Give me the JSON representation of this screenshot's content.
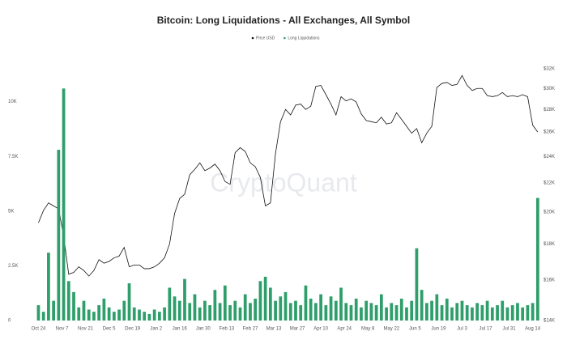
{
  "chart_data": {
    "type": "bar-line",
    "title": "Bitcoin: Long Liquidations - All Exchanges, All Symbol",
    "watermark": "CryptoQuant",
    "legend_position": "top",
    "x": [
      0,
      3,
      6,
      9,
      12,
      15,
      18,
      21,
      24,
      27,
      30,
      33,
      36,
      39,
      42,
      45,
      48,
      51,
      54,
      57,
      60,
      63,
      66,
      69,
      72,
      75,
      78,
      81,
      84,
      87,
      90,
      93,
      96,
      99,
      102,
      105,
      108,
      111,
      114,
      117,
      120,
      123,
      126,
      129,
      132,
      135,
      138,
      141,
      144,
      147,
      150,
      153,
      156,
      159,
      162,
      165,
      168,
      171,
      174,
      177,
      180,
      183,
      186,
      189,
      192,
      195,
      198,
      201,
      204,
      207,
      210,
      213,
      216,
      219,
      222,
      225,
      228,
      231,
      234,
      237,
      240,
      243,
      246,
      249,
      252,
      255,
      258,
      261,
      264,
      267,
      270,
      273,
      276,
      279,
      282,
      285,
      288,
      291,
      294,
      297
    ],
    "xlim": [
      -6,
      299
    ],
    "xticks": [
      {
        "value": 0,
        "label": "Oct 24"
      },
      {
        "value": 14,
        "label": "Nov 7"
      },
      {
        "value": 28,
        "label": "Nov 21"
      },
      {
        "value": 42,
        "label": "Dec 5"
      },
      {
        "value": 56,
        "label": "Dec 19"
      },
      {
        "value": 70,
        "label": "Jan 2"
      },
      {
        "value": 84,
        "label": "Jan 16"
      },
      {
        "value": 98,
        "label": "Jan 30"
      },
      {
        "value": 112,
        "label": "Feb 13"
      },
      {
        "value": 126,
        "label": "Feb 27"
      },
      {
        "value": 140,
        "label": "Mar 13"
      },
      {
        "value": 154,
        "label": "Mar 27"
      },
      {
        "value": 168,
        "label": "Apr 10"
      },
      {
        "value": 182,
        "label": "Apr 24"
      },
      {
        "value": 196,
        "label": "May 8"
      },
      {
        "value": 210,
        "label": "May 22"
      },
      {
        "value": 224,
        "label": "Jun 5"
      },
      {
        "value": 238,
        "label": "Jun 19"
      },
      {
        "value": 252,
        "label": "Jul 3"
      },
      {
        "value": 266,
        "label": "Jul 17"
      },
      {
        "value": 280,
        "label": "Jul 31"
      },
      {
        "value": 294,
        "label": "Aug 14"
      }
    ],
    "ylim": [
      0,
      11500
    ],
    "yticks": [
      0,
      {
        "value": 2500,
        "label": "2.5K"
      },
      {
        "value": 5000,
        "label": "5K"
      },
      {
        "value": 7500,
        "label": "7.5K"
      },
      {
        "value": 10000,
        "label": "10K"
      }
    ],
    "y2lim": [
      14000,
      32000
    ],
    "y2scale": "log",
    "y2ticks": [
      {
        "value": 14000,
        "label": "$14K"
      },
      {
        "value": 16000,
        "label": "$16K"
      },
      {
        "value": 18000,
        "label": "$18K"
      },
      {
        "value": 20000,
        "label": "$20K"
      },
      {
        "value": 22000,
        "label": "$22K"
      },
      {
        "value": 24000,
        "label": "$24K"
      },
      {
        "value": 26000,
        "label": "$26K"
      },
      {
        "value": 28000,
        "label": "$28K"
      },
      {
        "value": 30000,
        "label": "$30K"
      },
      {
        "value": 32000,
        "label": "$32K"
      }
    ],
    "series": [
      {
        "name": "Price USD",
        "type": "line",
        "axis": "y2",
        "color": "#111111",
        "values": [
          19300,
          20100,
          20600,
          20400,
          20200,
          18500,
          16300,
          16400,
          16700,
          16500,
          16200,
          16500,
          17100,
          16900,
          17000,
          17200,
          17300,
          17800,
          16700,
          16800,
          16800,
          16600,
          16600,
          16700,
          16900,
          17200,
          18000,
          19900,
          20900,
          21200,
          22600,
          23000,
          23500,
          22900,
          23100,
          23400,
          22900,
          22100,
          21900,
          24300,
          24700,
          24400,
          23500,
          23200,
          22400,
          20400,
          20600,
          24200,
          26900,
          28000,
          27500,
          28400,
          28500,
          28000,
          28300,
          30200,
          30300,
          29400,
          28500,
          27500,
          29200,
          28800,
          29000,
          28700,
          27600,
          27000,
          26900,
          26800,
          27300,
          26700,
          26800,
          27700,
          27100,
          26500,
          25900,
          26300,
          25100,
          25900,
          26500,
          30100,
          30500,
          30600,
          30300,
          30400,
          31300,
          30300,
          29800,
          30000,
          30000,
          29300,
          29200,
          29300,
          29600,
          29200,
          29300,
          29200,
          29400,
          29200,
          26600,
          26000
        ]
      },
      {
        "name": "Long Liquidations",
        "type": "bar",
        "color": "#2e9e6a",
        "values": [
          700,
          400,
          3100,
          900,
          7800,
          10600,
          1800,
          1300,
          600,
          900,
          500,
          400,
          700,
          1000,
          600,
          400,
          500,
          900,
          1700,
          600,
          500,
          400,
          300,
          500,
          400,
          600,
          1500,
          1100,
          900,
          1900,
          800,
          1200,
          600,
          900,
          700,
          1400,
          800,
          1600,
          700,
          900,
          600,
          1200,
          800,
          1000,
          1800,
          2000,
          1500,
          900,
          1100,
          1300,
          800,
          900,
          700,
          1600,
          1000,
          800,
          1200,
          700,
          1100,
          900,
          1500,
          800,
          700,
          1000,
          600,
          900,
          800,
          700,
          1200,
          600,
          800,
          700,
          1000,
          600,
          900,
          3300,
          1400,
          800,
          900,
          1200,
          700,
          1000,
          600,
          800,
          900,
          700,
          600,
          800,
          700,
          900,
          600,
          700,
          900,
          600,
          700,
          800,
          600,
          700,
          800,
          5600
        ]
      }
    ]
  }
}
